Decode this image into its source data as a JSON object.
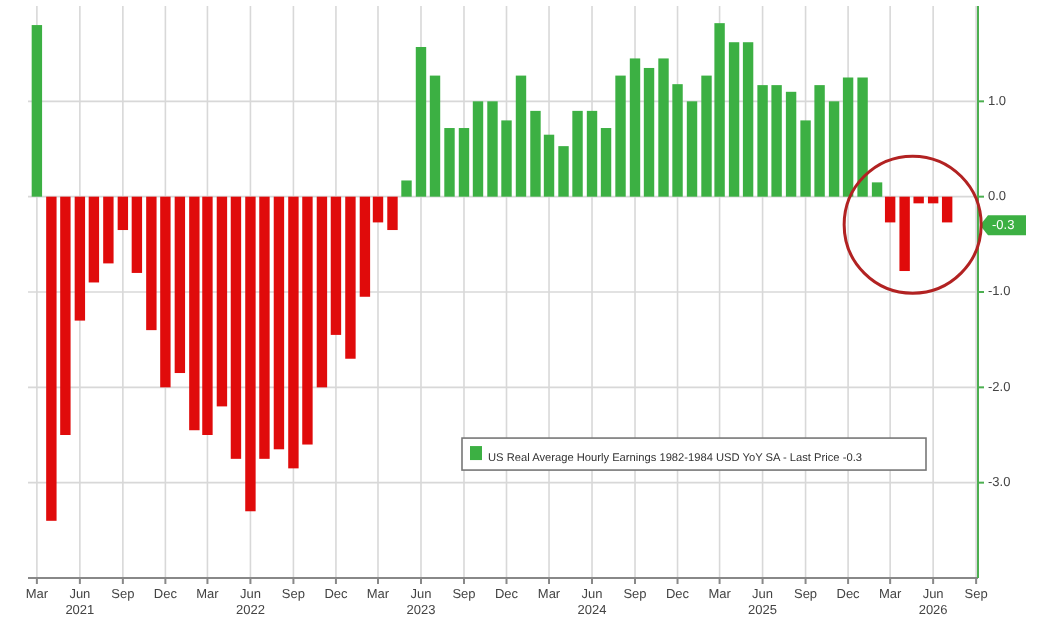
{
  "chart_data": {
    "type": "bar",
    "x": [
      "2021-03",
      "2021-04",
      "2021-05",
      "2021-06",
      "2021-07",
      "2021-08",
      "2021-09",
      "2021-10",
      "2021-11",
      "2021-12",
      "2022-01",
      "2022-02",
      "2022-03",
      "2022-04",
      "2022-05",
      "2022-06",
      "2022-07",
      "2022-08",
      "2022-09",
      "2022-10",
      "2022-11",
      "2022-12",
      "2023-01",
      "2023-02",
      "2023-03",
      "2023-04",
      "2023-05",
      "2023-06",
      "2023-07",
      "2023-08",
      "2023-09",
      "2023-10",
      "2023-11",
      "2023-12",
      "2024-01",
      "2024-02",
      "2024-03",
      "2024-04",
      "2024-05",
      "2024-06",
      "2024-07",
      "2024-08",
      "2024-09",
      "2024-10",
      "2024-11",
      "2024-12",
      "2025-01",
      "2025-02",
      "2025-03",
      "2025-04",
      "2025-05",
      "2025-06",
      "2025-07",
      "2025-08",
      "2025-09",
      "2025-10",
      "2025-11",
      "2025-12",
      "2026-01",
      "2026-02",
      "2026-03",
      "2026-04",
      "2026-05",
      "2026-06",
      "2026-07"
    ],
    "series": [
      {
        "name": "US Real Average Hourly Earnings 1982-1984 USD YoY SA - Last Price -0.3",
        "color": "#3cb043",
        "values": [
          1.8,
          -3.4,
          -2.5,
          -1.3,
          -0.9,
          -0.7,
          -0.35,
          -0.8,
          -1.4,
          -2.0,
          -1.85,
          -2.45,
          -2.5,
          -2.2,
          -2.75,
          -3.3,
          -2.75,
          -2.65,
          -2.85,
          -2.6,
          -2.0,
          -1.45,
          -1.7,
          -1.05,
          -0.27,
          -0.35,
          0.17,
          1.57,
          1.27,
          0.72,
          0.72,
          1.0,
          1.0,
          0.8,
          1.27,
          0.9,
          0.65,
          0.53,
          0.9,
          0.9,
          0.72,
          1.27,
          1.45,
          1.35,
          1.45,
          1.18,
          1.0,
          1.27,
          1.82,
          1.62,
          1.62,
          1.17,
          1.17,
          1.1,
          0.8,
          1.17,
          1.0,
          1.25,
          1.25,
          0.15,
          -0.27,
          -0.78,
          -0.07,
          -0.07,
          -0.27
        ],
        "colors": [
          "#3cb043",
          "#e00b0b",
          "#e00b0b",
          "#e00b0b",
          "#e00b0b",
          "#e00b0b",
          "#e00b0b",
          "#e00b0b",
          "#e00b0b",
          "#e00b0b",
          "#e00b0b",
          "#e00b0b",
          "#e00b0b",
          "#e00b0b",
          "#e00b0b",
          "#e00b0b",
          "#e00b0b",
          "#e00b0b",
          "#e00b0b",
          "#e00b0b",
          "#e00b0b",
          "#e00b0b",
          "#e00b0b",
          "#e00b0b",
          "#e00b0b",
          "#e00b0b",
          "#3cb043",
          "#3cb043",
          "#3cb043",
          "#3cb043",
          "#3cb043",
          "#3cb043",
          "#3cb043",
          "#3cb043",
          "#3cb043",
          "#3cb043",
          "#3cb043",
          "#3cb043",
          "#3cb043",
          "#3cb043",
          "#3cb043",
          "#3cb043",
          "#3cb043",
          "#3cb043",
          "#3cb043",
          "#3cb043",
          "#3cb043",
          "#3cb043",
          "#3cb043",
          "#3cb043",
          "#3cb043",
          "#3cb043",
          "#3cb043",
          "#3cb043",
          "#3cb043",
          "#3cb043",
          "#3cb043",
          "#3cb043",
          "#3cb043",
          "#3cb043",
          "#e00b0b",
          "#e00b0b",
          "#e00b0b",
          "#e00b0b",
          "#e00b0b"
        ]
      }
    ],
    "xlim": [
      "2021-02-10",
      "2026-09-05"
    ],
    "xticks": [
      {
        "value": "2021-03",
        "label": "Mar"
      },
      {
        "value": "2021-06",
        "label": "Jun\n2021"
      },
      {
        "value": "2021-09",
        "label": "Sep"
      },
      {
        "value": "2021-12",
        "label": "Dec"
      },
      {
        "value": "2022-03",
        "label": "Mar"
      },
      {
        "value": "2022-06",
        "label": "Jun\n2022"
      },
      {
        "value": "2022-09",
        "label": "Sep"
      },
      {
        "value": "2022-12",
        "label": "Dec"
      },
      {
        "value": "2023-03",
        "label": "Mar"
      },
      {
        "value": "2023-06",
        "label": "Jun\n2023"
      },
      {
        "value": "2023-09",
        "label": "Sep"
      },
      {
        "value": "2023-12",
        "label": "Dec"
      },
      {
        "value": "2024-03",
        "label": "Mar"
      },
      {
        "value": "2024-06",
        "label": "Jun\n2024"
      },
      {
        "value": "2024-09",
        "label": "Sep"
      },
      {
        "value": "2024-12",
        "label": "Dec"
      },
      {
        "value": "2025-03",
        "label": "Mar"
      },
      {
        "value": "2025-06",
        "label": "Jun\n2025"
      },
      {
        "value": "2025-09",
        "label": "Sep"
      },
      {
        "value": "2025-12",
        "label": "Dec"
      },
      {
        "value": "2026-03",
        "label": "Mar"
      },
      {
        "value": "2026-06",
        "label": "Jun\n2026"
      },
      {
        "value": "2026-09",
        "label": "Sep"
      }
    ],
    "ylim": [
      -4,
      2
    ],
    "yticks": [
      {
        "value": 1,
        "label": "1.0"
      },
      {
        "value": 0,
        "label": "0.0"
      },
      {
        "value": -1,
        "label": "-1.0"
      },
      {
        "value": -2,
        "label": "-2.0"
      },
      {
        "value": -3,
        "label": "-3.0"
      }
    ],
    "annotations": [
      {
        "text": "-0.3",
        "y": -0.3
      }
    ],
    "grid": true,
    "legend": "bottom right"
  }
}
